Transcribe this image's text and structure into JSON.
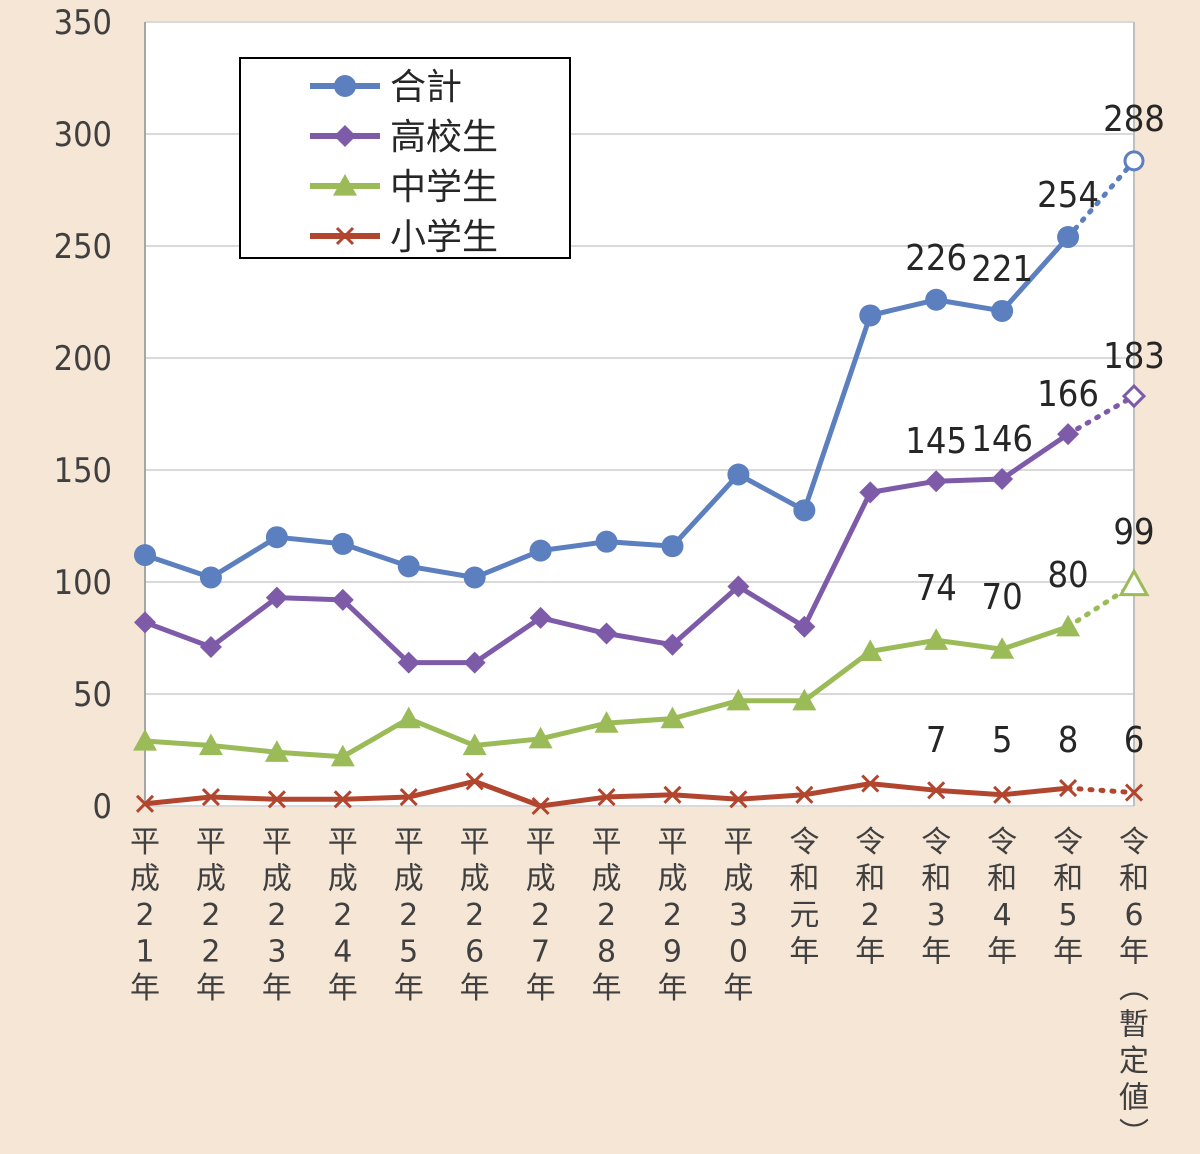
{
  "chart_data": {
    "type": "line",
    "ylim": [
      0,
      350
    ],
    "yticks": [
      0,
      50,
      100,
      150,
      200,
      250,
      300,
      350
    ],
    "grid": true,
    "legend_position": "top-left",
    "categories": [
      "平成21年",
      "平成22年",
      "平成23年",
      "平成24年",
      "平成25年",
      "平成26年",
      "平成27年",
      "平成28年",
      "平成29年",
      "平成30年",
      "令和元年",
      "令和2年",
      "令和3年",
      "令和4年",
      "令和5年",
      "令和6年（暫定値）"
    ],
    "provisional_last_point": true,
    "series": [
      {
        "name": "合計",
        "color": "#5b7fbf",
        "marker": "circle",
        "values": [
          112,
          102,
          120,
          117,
          107,
          102,
          114,
          118,
          116,
          148,
          132,
          219,
          226,
          221,
          254,
          288
        ],
        "labeled": [
          12,
          13,
          14,
          15
        ]
      },
      {
        "name": "高校生",
        "color": "#7e5ba8",
        "marker": "diamond",
        "values": [
          82,
          71,
          93,
          92,
          64,
          64,
          84,
          77,
          72,
          98,
          80,
          140,
          145,
          146,
          166,
          183
        ],
        "labeled": [
          12,
          13,
          14,
          15
        ]
      },
      {
        "name": "中学生",
        "color": "#9bbb59",
        "marker": "triangle",
        "values": [
          29,
          27,
          24,
          22,
          39,
          27,
          30,
          37,
          39,
          47,
          47,
          69,
          74,
          70,
          80,
          99
        ],
        "labeled": [
          12,
          13,
          14,
          15
        ]
      },
      {
        "name": "小学生",
        "color": "#b2452e",
        "marker": "x",
        "values": [
          1,
          4,
          3,
          3,
          4,
          11,
          0,
          4,
          5,
          3,
          5,
          10,
          7,
          5,
          8,
          6
        ],
        "labeled": [
          12,
          13,
          14,
          15
        ]
      }
    ]
  }
}
